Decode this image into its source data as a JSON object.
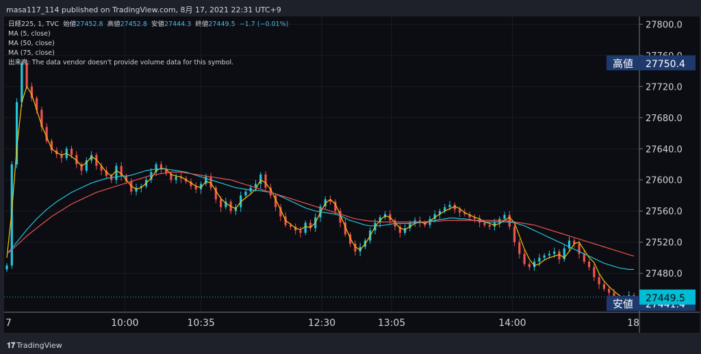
{
  "header": {
    "publish_line": "masa117_114 published on TradingView.com, 8月 17, 2021 22:31 UTC+9"
  },
  "legend": {
    "symbol": "日経225, 1, TVC",
    "open_label": "始値",
    "open_value": "27452.8",
    "high_label": "高値",
    "high_value": "27452.8",
    "low_label": "安値",
    "low_value": "27444.3",
    "close_label": "終値",
    "close_value": "27449.5",
    "change": "−1.7 (−0.01%)",
    "ma5": "MA (5, close)",
    "ma50": "MA (50, close)",
    "ma75": "MA (75, close)",
    "volume_note": "出来高: The data vendor doesn't provide volume data for this symbol."
  },
  "footer": {
    "brand": "TradingView"
  },
  "colors": {
    "background": "#0b0d13",
    "up": "#26c6da",
    "down": "#ef5350",
    "ma5": "#ffc107",
    "ma50": "#26c6da",
    "ma75": "#ef5350",
    "label_bg": "#1e3a6d",
    "last_price_bg": "#00bcd4"
  },
  "chart_data": {
    "type": "candlestick",
    "title": "",
    "ylim": [
      27430,
      27810
    ],
    "y_ticks": [
      "27800.0",
      "27760.0",
      "27720.0",
      "27680.0",
      "27640.0",
      "27600.0",
      "27560.0",
      "27520.0",
      "27480.0"
    ],
    "x_tick_labels": [
      "7",
      "10:00",
      "10:35",
      "12:30",
      "13:05",
      "14:00",
      "18"
    ],
    "price_labels": {
      "high_label": "高値",
      "high_value": "27750.4",
      "last_value": "27449.5",
      "low_label": "安値",
      "low_value": "27441.4"
    },
    "series": [
      {
        "name": "MA (5, close)",
        "values": [
          27500,
          27560,
          27640,
          27700,
          27720,
          27710,
          27690,
          27670,
          27655,
          27640,
          27635,
          27632,
          27634,
          27630,
          27625,
          27618,
          27622,
          27630,
          27626,
          27618,
          27610,
          27605,
          27612,
          27608,
          27600,
          27592,
          27588,
          27590,
          27596,
          27602,
          27612,
          27615,
          27614,
          27607,
          27605,
          27604,
          27600,
          27596,
          27592,
          27590,
          27598,
          27596,
          27586,
          27576,
          27570,
          27566,
          27563,
          27572,
          27577,
          27582,
          27588,
          27600,
          27596,
          27588,
          27575,
          27562,
          27548,
          27543,
          27538,
          27536,
          27540,
          27539,
          27545,
          27558,
          27570,
          27575,
          27569,
          27555,
          27540,
          27525,
          27514,
          27510,
          27518,
          27528,
          27540,
          27548,
          27554,
          27552,
          27545,
          27538,
          27536,
          27540,
          27544,
          27546,
          27544,
          27547,
          27552,
          27556,
          27560,
          27563,
          27566,
          27563,
          27558,
          27555,
          27552,
          27550,
          27546,
          27544,
          27542,
          27544,
          27548,
          27552,
          27545,
          27528,
          27511,
          27498,
          27490,
          27492,
          27497,
          27500,
          27502,
          27504,
          27500,
          27508,
          27518,
          27520,
          27510,
          27500,
          27494,
          27480,
          27470,
          27463,
          27457,
          27452,
          27447,
          27446,
          27450
        ]
      },
      {
        "name": "MA (50, close)",
        "values": [
          27505,
          27512,
          27520,
          27528,
          27536,
          27543,
          27550,
          27556,
          27562,
          27567,
          27572,
          27576,
          27580,
          27584,
          27587,
          27590,
          27593,
          27596,
          27598,
          27600,
          27602,
          27603,
          27604,
          27605,
          27605,
          27606,
          27608,
          27610,
          27612,
          27613,
          27614,
          27614,
          27614,
          27613,
          27612,
          27611,
          27610,
          27608,
          27606,
          27604,
          27602,
          27600,
          27598,
          27596,
          27594,
          27592,
          27590,
          27589,
          27588,
          27587,
          27587,
          27586,
          27585,
          27584,
          27582,
          27579,
          27576,
          27573,
          27570,
          27567,
          27564,
          27562,
          27560,
          27559,
          27558,
          27557,
          27556,
          27554,
          27551,
          27548,
          27546,
          27544,
          27542,
          27541,
          27541,
          27541,
          27542,
          27543,
          27544,
          27544,
          27544,
          27544,
          27545,
          27545,
          27546,
          27547,
          27548,
          27549,
          27550,
          27551,
          27551,
          27550,
          27550,
          27549,
          27548,
          27547,
          27546,
          27546,
          27546,
          27546,
          27546,
          27546,
          27545,
          27543,
          27541,
          27538,
          27535,
          27532,
          27529,
          27526,
          27523,
          27520,
          27517,
          27514,
          27511,
          27508,
          27505,
          27502,
          27499,
          27496,
          27493,
          27491,
          27489,
          27487,
          27486,
          27485,
          27485
        ]
      },
      {
        "name": "MA (75, close)",
        "values": [
          27505,
          27510,
          27516,
          27522,
          27528,
          27533,
          27538,
          27543,
          27548,
          27553,
          27557,
          27561,
          27565,
          27569,
          27572,
          27575,
          27578,
          27581,
          27584,
          27586,
          27588,
          27590,
          27592,
          27594,
          27596,
          27598,
          27600,
          27602,
          27604,
          27606,
          27607,
          27608,
          27609,
          27610,
          27610,
          27610,
          27609,
          27608,
          27607,
          27606,
          27605,
          27604,
          27603,
          27602,
          27601,
          27600,
          27598,
          27596,
          27594,
          27592,
          27590,
          27588,
          27586,
          27584,
          27582,
          27580,
          27578,
          27576,
          27574,
          27572,
          27570,
          27568,
          27566,
          27564,
          27562,
          27560,
          27558,
          27556,
          27554,
          27552,
          27550,
          27549,
          27548,
          27547,
          27547,
          27546,
          27546,
          27546,
          27546,
          27546,
          27546,
          27546,
          27546,
          27546,
          27546,
          27546,
          27547,
          27547,
          27548,
          27548,
          27548,
          27548,
          27548,
          27548,
          27548,
          27548,
          27548,
          27548,
          27548,
          27548,
          27548,
          27547,
          27546,
          27545,
          27544,
          27543,
          27542,
          27540,
          27538,
          27536,
          27534,
          27532,
          27530,
          27528,
          27526,
          27524,
          27522,
          27520,
          27518,
          27516,
          27514,
          27512,
          27510,
          27508,
          27506,
          27504,
          27502
        ]
      }
    ],
    "candles_close": [
      27490,
      27620,
      27700,
      27750,
      27720,
      27705,
      27690,
      27668,
      27650,
      27638,
      27633,
      27628,
      27640,
      27632,
      27620,
      27612,
      27625,
      27632,
      27618,
      27612,
      27605,
      27600,
      27618,
      27605,
      27598,
      27585,
      27590,
      27592,
      27600,
      27610,
      27620,
      27614,
      27608,
      27600,
      27604,
      27602,
      27598,
      27592,
      27588,
      27595,
      27604,
      27590,
      27575,
      27565,
      27572,
      27560,
      27565,
      27580,
      27585,
      27590,
      27595,
      27607,
      27590,
      27580,
      27565,
      27553,
      27542,
      27540,
      27535,
      27532,
      27545,
      27538,
      27552,
      27566,
      27575,
      27572,
      27560,
      27545,
      27530,
      27518,
      27508,
      27514,
      27522,
      27535,
      27545,
      27552,
      27556,
      27548,
      27540,
      27532,
      27538,
      27545,
      27548,
      27545,
      27542,
      27550,
      27556,
      27560,
      27565,
      27568,
      27562,
      27558,
      27556,
      27552,
      27550,
      27545,
      27542,
      27540,
      27545,
      27550,
      27555,
      27540,
      27520,
      27505,
      27492,
      27488,
      27495,
      27500,
      27503,
      27505,
      27508,
      27498,
      27512,
      27522,
      27518,
      27505,
      27495,
      27488,
      27475,
      27466,
      27460,
      27455,
      27450,
      27446,
      27448,
      27452,
      27449.5
    ]
  }
}
